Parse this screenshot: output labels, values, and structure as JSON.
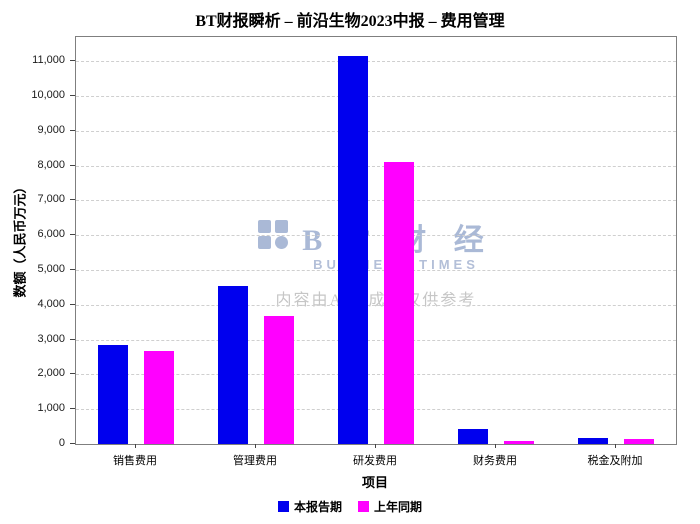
{
  "title": "BT财报瞬析 – 前沿生物2023中报 – 费用管理",
  "watermark": {
    "logo_text": "B T 财 经",
    "subtitle": "BUSINESS TIMES",
    "ai_note": "内容由AI生成，仅供参考"
  },
  "chart_data": {
    "type": "bar",
    "title": "BT财报瞬析 – 前沿生物2023中报 – 费用管理",
    "categories": [
      "销售费用",
      "管理费用",
      "研发费用",
      "财务费用",
      "税金及附加"
    ],
    "series": [
      {
        "name": "本报告期",
        "color": "#0000ee",
        "values": [
          2840,
          4530,
          11150,
          440,
          170
        ]
      },
      {
        "name": "上年同期",
        "color": "#ff00ff",
        "values": [
          2660,
          3690,
          8120,
          80,
          150
        ]
      }
    ],
    "xlabel": "项目",
    "ylabel": "数额（人民币万元）",
    "ylim": [
      0,
      11700
    ],
    "yticks": [
      0,
      1000,
      2000,
      3000,
      4000,
      5000,
      6000,
      7000,
      8000,
      9000,
      10000,
      11000
    ],
    "grid": "horizontal-dashed",
    "legend_position": "bottom"
  }
}
